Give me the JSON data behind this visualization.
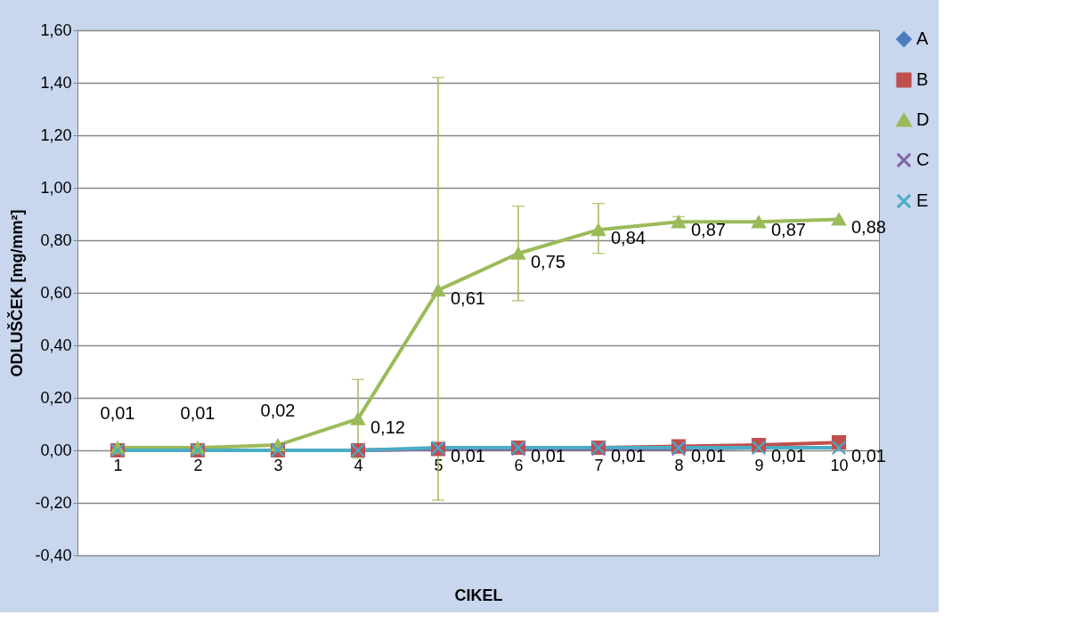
{
  "chart_data": {
    "type": "line",
    "xlabel": "CIKEL",
    "ylabel": "ODLUŠČEK [mg/mm²]",
    "categories": [
      "1",
      "2",
      "3",
      "4",
      "5",
      "6",
      "7",
      "8",
      "9",
      "10"
    ],
    "ylim": [
      -0.4,
      1.6
    ],
    "yticks": [
      {
        "value": -0.4,
        "label": "-0,40"
      },
      {
        "value": -0.2,
        "label": "-0,20"
      },
      {
        "value": 0,
        "label": "0,00"
      },
      {
        "value": 0.2,
        "label": "0,20"
      },
      {
        "value": 0.4,
        "label": "0,40"
      },
      {
        "value": 0.6,
        "label": "0,60"
      },
      {
        "value": 0.8,
        "label": "0,80"
      },
      {
        "value": 1.0,
        "label": "1,00"
      },
      {
        "value": 1.2,
        "label": "1,20"
      },
      {
        "value": 1.4,
        "label": "1,40"
      },
      {
        "value": 1.6,
        "label": "1,60"
      }
    ],
    "grid": "y",
    "legend": "right",
    "series": [
      {
        "name": "A",
        "color": "#4a7ebb",
        "marker": "diamond",
        "values": [
          null,
          null,
          null,
          null,
          null,
          null,
          null,
          null,
          null,
          null
        ]
      },
      {
        "name": "B",
        "color": "#c0504d",
        "marker": "square",
        "values": [
          0,
          0,
          0,
          0,
          0.005,
          0.01,
          0.01,
          0.015,
          0.02,
          0.03
        ]
      },
      {
        "name": "D",
        "color": "#9bbb59",
        "marker": "triangle",
        "values": [
          0.01,
          0.01,
          0.02,
          0.12,
          0.61,
          0.75,
          0.84,
          0.87,
          0.87,
          0.88
        ],
        "errors": [
          null,
          null,
          null,
          0.15,
          [
            -0.19,
            1.42
          ],
          [
            0.57,
            0.93
          ],
          [
            0.75,
            0.94
          ],
          [
            0.85,
            0.89
          ],
          null,
          null
        ],
        "value_labels": [
          "0,01",
          "0,01",
          "0,02",
          "0,12",
          "0,61",
          "0,75",
          "0,84",
          "0,87",
          "0,87",
          "0,88"
        ]
      },
      {
        "name": "C",
        "color": "#8064a2",
        "marker": "cross",
        "values": [
          null,
          null,
          0,
          0,
          0.005,
          0.005,
          0.005,
          0.005,
          0.01,
          0.01
        ]
      },
      {
        "name": "E",
        "color": "#4bacc6",
        "marker": "cross",
        "values": [
          0,
          0,
          0,
          0,
          0.01,
          0.01,
          0.01,
          0.01,
          0.01,
          0.01
        ],
        "value_labels": [
          null,
          null,
          null,
          null,
          "0,01",
          "0,01",
          "0,01",
          "0,01",
          "0,01",
          "0,01"
        ]
      }
    ]
  }
}
